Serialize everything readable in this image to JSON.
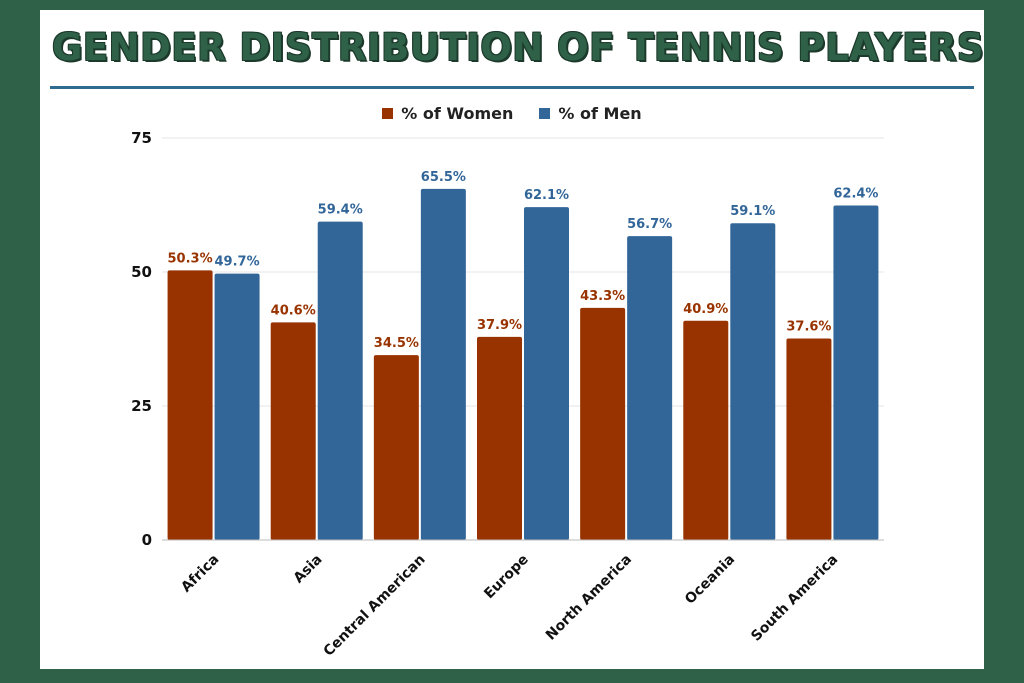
{
  "title": "GENDER DISTRIBUTION OF TENNIS PLAYERS",
  "colors": {
    "frame": "#2f6148",
    "women": "#983300",
    "men": "#326699"
  },
  "chart_data": {
    "type": "bar",
    "title": "GENDER DISTRIBUTION OF TENNIS PLAYERS",
    "xlabel": "",
    "ylabel": "",
    "ylim": [
      0,
      75
    ],
    "yticks": [
      0,
      25,
      50,
      75
    ],
    "grid": true,
    "legend_position": "top-center",
    "categories": [
      "Africa",
      "Asia",
      "Central American",
      "Europe",
      "North America",
      "Oceania",
      "South America"
    ],
    "series": [
      {
        "name": "% of Women",
        "values": [
          50.3,
          40.6,
          34.5,
          37.9,
          43.3,
          40.9,
          37.6
        ],
        "labels": [
          "50.3%",
          "40.6%",
          "34.5%",
          "37.9%",
          "43.3%",
          "40.9%",
          "37.6%"
        ]
      },
      {
        "name": "% of Men",
        "values": [
          49.7,
          59.4,
          65.5,
          62.1,
          56.7,
          59.1,
          62.4
        ],
        "labels": [
          "49.7%",
          "59.4%",
          "65.5%",
          "62.1%",
          "56.7%",
          "59.1%",
          "62.4%"
        ]
      }
    ]
  }
}
